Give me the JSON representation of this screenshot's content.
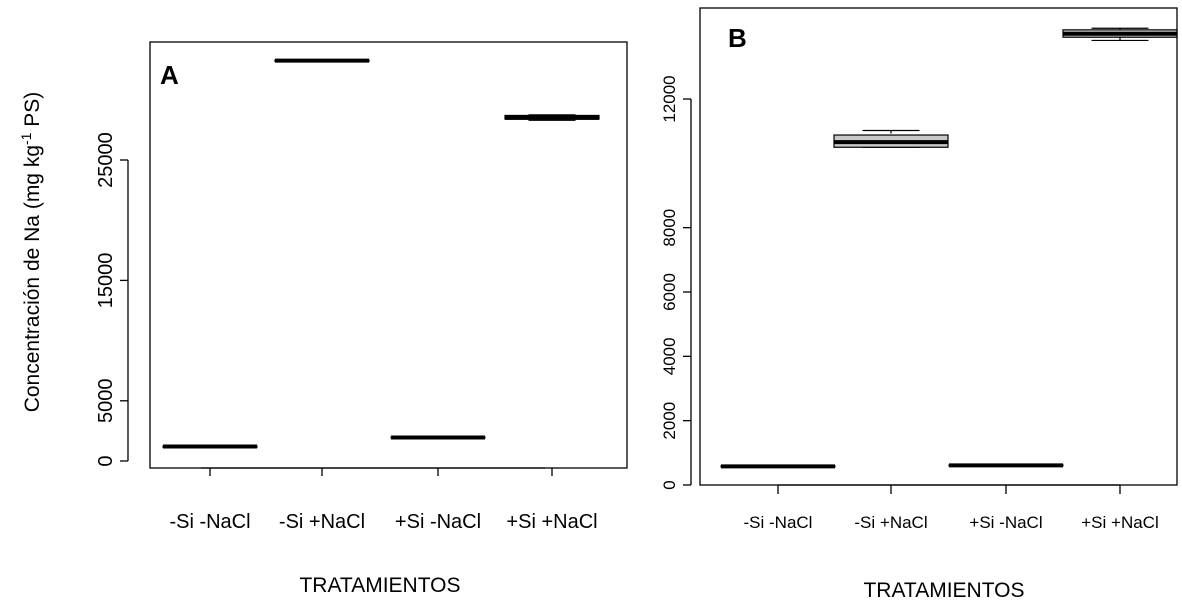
{
  "figure": {
    "ylabel_main": "Concentración de Na (mg kg",
    "ylabel_sup": "-1",
    "ylabel_tail": " PS)"
  },
  "chart_data": [
    {
      "type": "box",
      "panel_label": "A",
      "title": "",
      "xlabel": "TRATAMIENTOS",
      "ylabel": "Concentración de Na (mg kg-1 PS)",
      "categories": [
        "-Si -NaCl",
        "-Si +NaCl",
        "+Si -NaCl",
        "+Si +NaCl"
      ],
      "yticks": [
        0,
        5000,
        15000,
        25000
      ],
      "ylim": [
        0,
        33000
      ],
      "series": [
        {
          "values": [
            {
              "min": 1150,
              "q1": 1150,
              "median": 1200,
              "q3": 1230,
              "max": 1250
            },
            {
              "min": 33200,
              "q1": 33200,
              "median": 33250,
              "q3": 33300,
              "max": 33300
            },
            {
              "min": 1930,
              "q1": 1930,
              "median": 1950,
              "q3": 1970,
              "max": 1980
            },
            {
              "min": 28300,
              "q1": 28400,
              "median": 28500,
              "q3": 28700,
              "max": 28750
            }
          ]
        }
      ],
      "box_color": "#c8c8c8",
      "grid": false
    },
    {
      "type": "box",
      "panel_label": "B",
      "title": "",
      "xlabel": "TRATAMIENTOS",
      "ylabel": "",
      "categories": [
        "-Si -NaCl",
        "-Si +NaCl",
        "+Si -NaCl",
        "+Si +NaCl"
      ],
      "yticks": [
        0,
        2000,
        4000,
        6000,
        8000,
        12000
      ],
      "ylim": [
        0,
        14500
      ],
      "series": [
        {
          "values": [
            {
              "min": 560,
              "q1": 570,
              "median": 580,
              "q3": 590,
              "max": 600
            },
            {
              "min": 10500,
              "q1": 10500,
              "median": 10660,
              "q3": 10880,
              "max": 11020
            },
            {
              "min": 590,
              "q1": 600,
              "median": 610,
              "q3": 620,
              "max": 630
            },
            {
              "min": 13820,
              "q1": 13920,
              "median": 14030,
              "q3": 14150,
              "max": 14200
            }
          ]
        }
      ],
      "box_color": "#c8c8c8",
      "grid": false
    }
  ]
}
